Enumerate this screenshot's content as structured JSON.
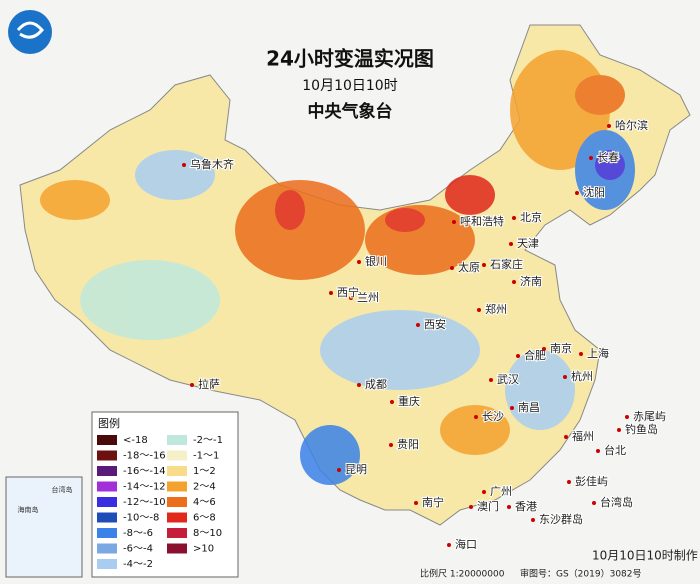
{
  "header": {
    "title": "24小时变温实况图",
    "date": "10月10日10时",
    "org": "中央气象台"
  },
  "legend": {
    "title": "图例",
    "items": [
      {
        "label": "<-18",
        "color": "#4a0a0a"
      },
      {
        "label": "-18～-16",
        "color": "#6e1010"
      },
      {
        "label": "-16～-14",
        "color": "#5a1a7a"
      },
      {
        "label": "-14～-12",
        "color": "#a32fd8"
      },
      {
        "label": "-12～-10",
        "color": "#3a2ee0"
      },
      {
        "label": "-10～-8",
        "color": "#1e4db8"
      },
      {
        "label": "-8～-6",
        "color": "#3b82e8"
      },
      {
        "label": "-6～-4",
        "color": "#7aa8e0"
      },
      {
        "label": "-4～-2",
        "color": "#a9cdf0"
      },
      {
        "label": "-2～-1",
        "color": "#bfe8dc"
      },
      {
        "label": "-1～1",
        "color": "#f5f0c8"
      },
      {
        "label": "1～2",
        "color": "#f9dc8a"
      },
      {
        "label": "2～4",
        "color": "#f4a22e"
      },
      {
        "label": "4～6",
        "color": "#ec6e1c"
      },
      {
        "label": "6～8",
        "color": "#e0281c"
      },
      {
        "label": "8～10",
        "color": "#c41e3a"
      },
      {
        "label": ">10",
        "color": "#8a1030"
      }
    ]
  },
  "cities": [
    "乌鲁木齐",
    "北京",
    "天津",
    "石家庄",
    "太原",
    "呼和浩特",
    "银川",
    "兰州",
    "西宁",
    "西安",
    "郑州",
    "济南",
    "拉萨",
    "成都",
    "重庆",
    "贵阳",
    "昆明",
    "南宁",
    "广州",
    "澳门",
    "香港",
    "海口",
    "长沙",
    "武汉",
    "南昌",
    "合肥",
    "南京",
    "上海",
    "杭州",
    "福州",
    "台北",
    "哈尔滨",
    "长春",
    "沈阳",
    "赤尾屿",
    "钓鱼岛",
    "彭佳屿",
    "台湾岛",
    "东沙群岛"
  ],
  "inset": {
    "labels": [
      "台湾岛",
      "海南岛"
    ]
  },
  "footer": {
    "scale": "比例尺 1:20000000",
    "approval": "审图号：GS（2019）3082号",
    "made": "10月10日10时制作"
  }
}
